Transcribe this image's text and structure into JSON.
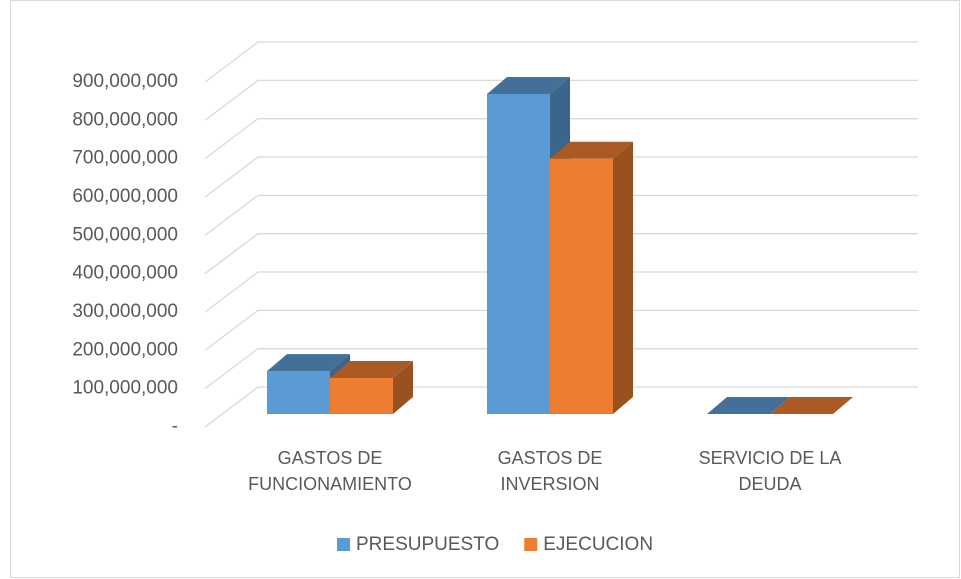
{
  "chart_data": {
    "type": "bar3d",
    "categories": [
      "GASTOS DE FUNCIONAMIENTO",
      "GASTOS DE INVERSION",
      "SERVICIO DE LA DEUDA"
    ],
    "series": [
      {
        "name": "PRESUPUESTO",
        "color": "#5b9bd5",
        "values": [
          112000000,
          835000000,
          0
        ]
      },
      {
        "name": "EJECUCION",
        "color": "#ed7d31",
        "values": [
          94000000,
          666000000,
          0
        ]
      }
    ],
    "ylim": [
      0,
      900000000
    ],
    "yticks": [
      {
        "value": 0,
        "label": "-"
      },
      {
        "value": 100000000,
        "label": "100,000,000"
      },
      {
        "value": 200000000,
        "label": "200,000,000"
      },
      {
        "value": 300000000,
        "label": "300,000,000"
      },
      {
        "value": 400000000,
        "label": "400,000,000"
      },
      {
        "value": 500000000,
        "label": "500,000,000"
      },
      {
        "value": 600000000,
        "label": "600,000,000"
      },
      {
        "value": 700000000,
        "label": "700,000,000"
      },
      {
        "value": 800000000,
        "label": "800,000,000"
      },
      {
        "value": 900000000,
        "label": "900,000,000"
      }
    ],
    "grid": true,
    "legend": "bottom"
  }
}
